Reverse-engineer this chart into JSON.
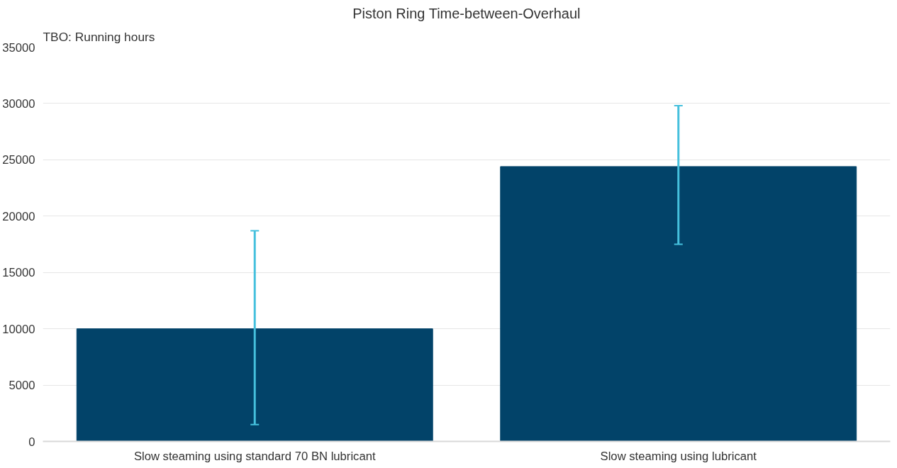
{
  "chart_data": {
    "type": "bar",
    "title": "Piston Ring Time-between-Overhaul",
    "ylabel": "TBO: Running hours",
    "categories": [
      "Slow steaming using standard 70 BN lubricant",
      "Slow steaming using lubricant"
    ],
    "values": [
      10000,
      24400
    ],
    "color": "#024369",
    "errors": [
      [
        1500,
        18700
      ],
      [
        17500,
        29800
      ]
    ],
    "ylim": [
      0,
      35000
    ],
    "yticks": [
      0,
      5000,
      10000,
      15000,
      20000,
      25000,
      30000,
      35000
    ],
    "grid": "y"
  }
}
